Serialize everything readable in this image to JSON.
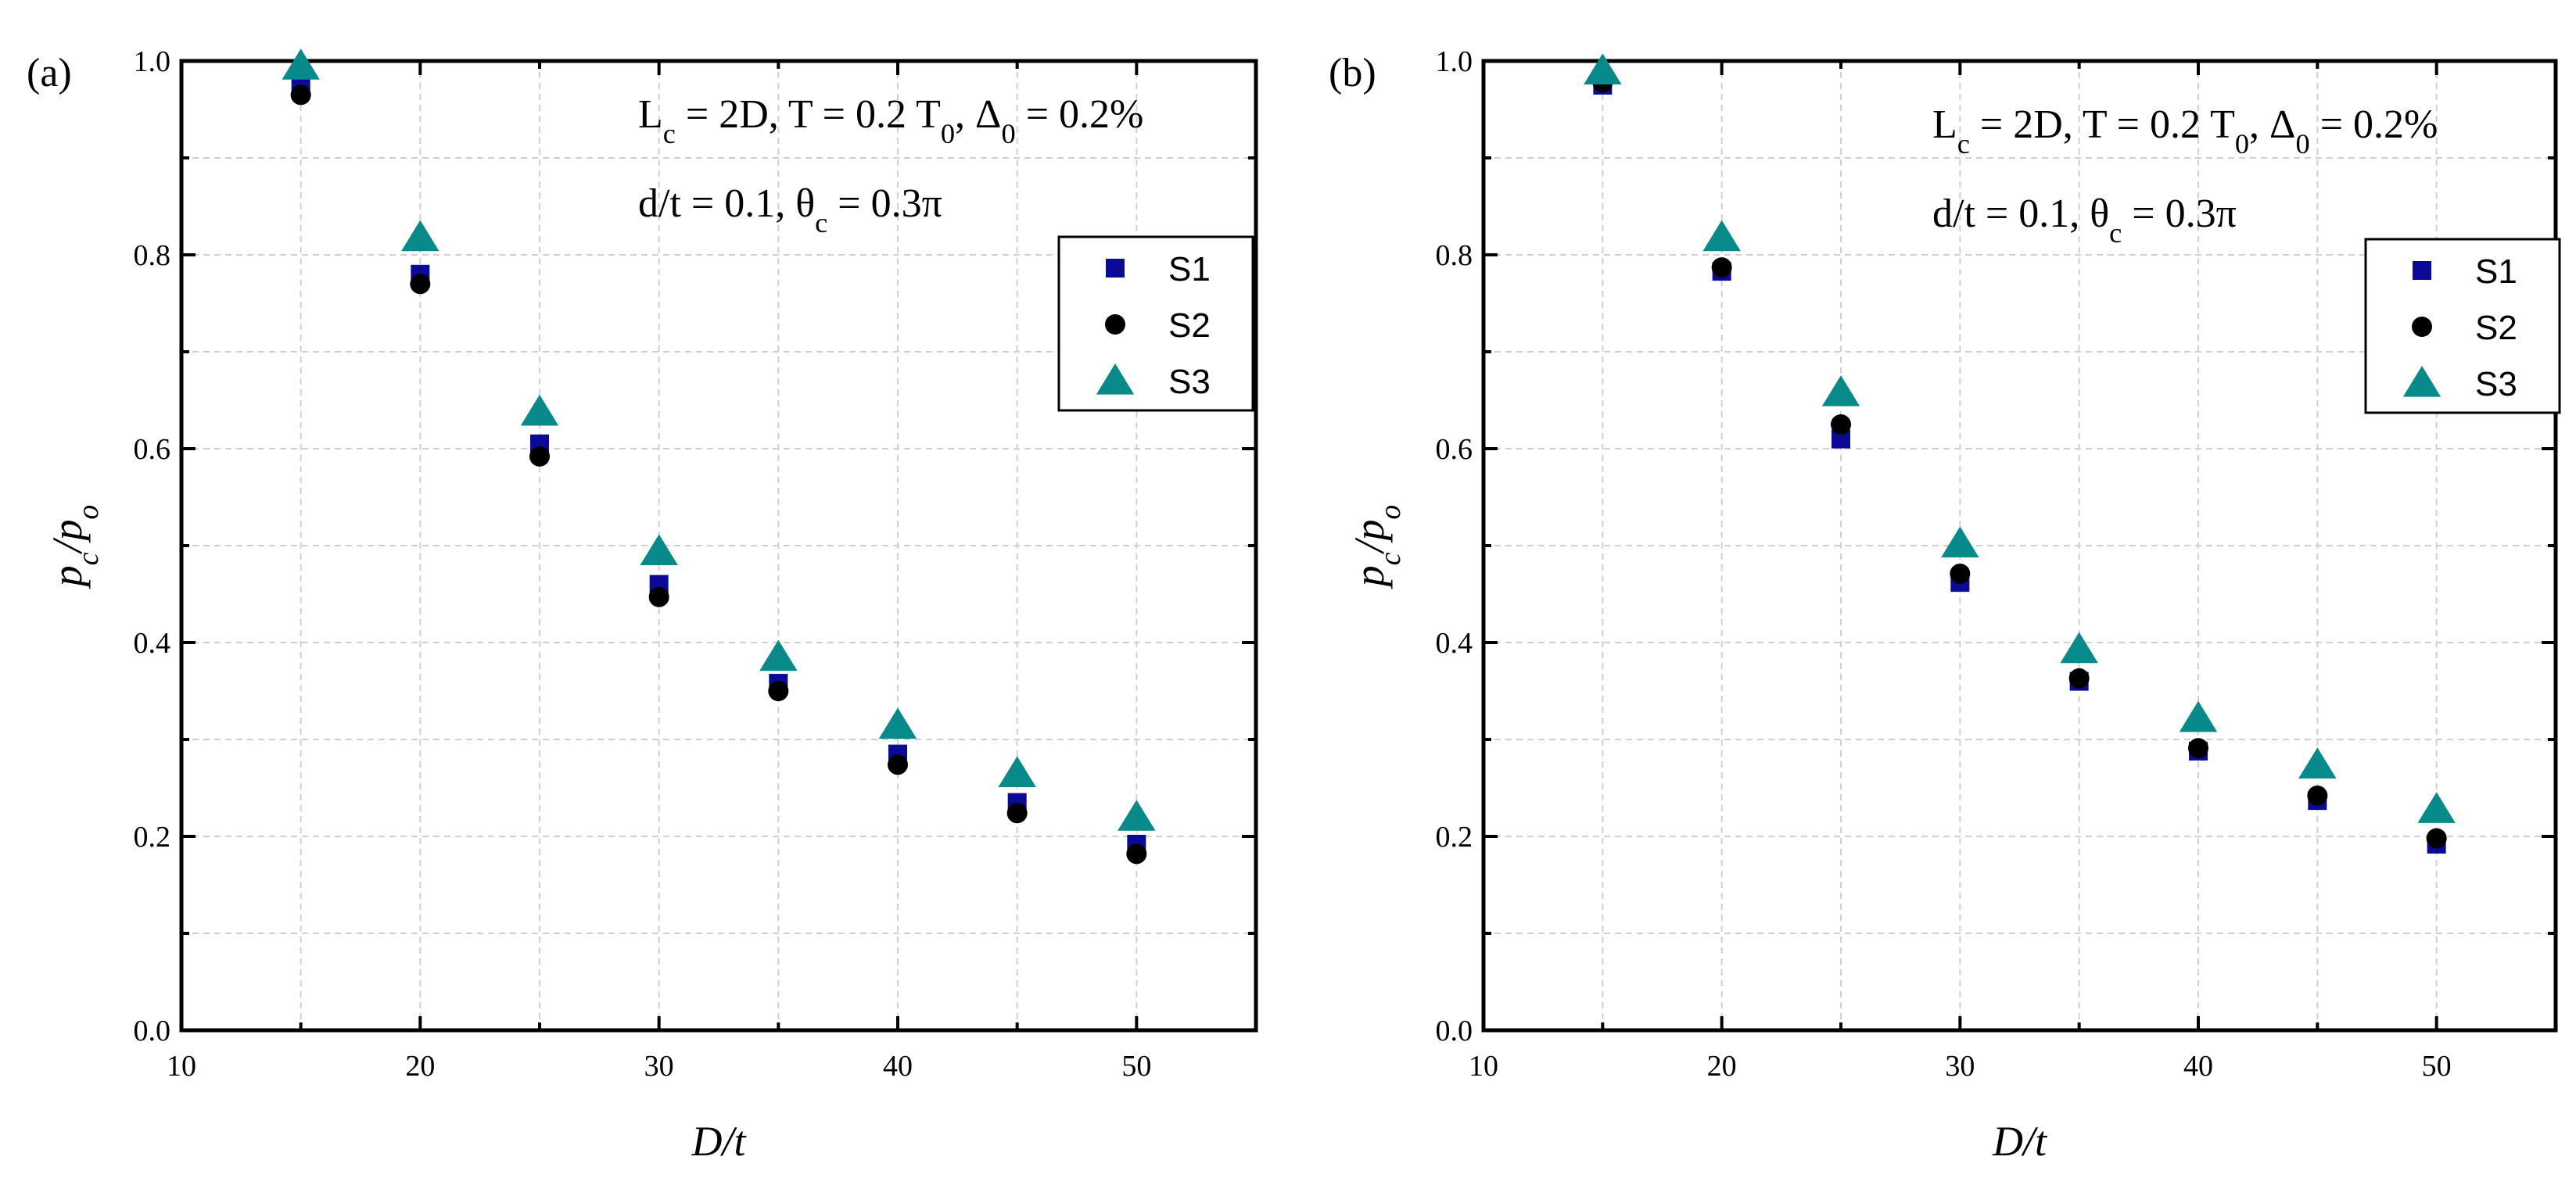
{
  "chart_data": [
    {
      "type": "scatter",
      "panel_label": "(a)",
      "title": "",
      "xlabel": "D/t",
      "ylabel": "p_c/p_o",
      "xlim": [
        10,
        55
      ],
      "ylim": [
        0.0,
        1.0
      ],
      "xticks": [
        10,
        20,
        30,
        40,
        50
      ],
      "xtick_labels": [
        "10",
        "20",
        "30",
        "40",
        "50"
      ],
      "yticks": [
        0.0,
        0.2,
        0.4,
        0.6,
        0.8,
        1.0
      ],
      "ytick_labels": [
        "0.0",
        "0.2",
        "0.4",
        "0.6",
        "0.8",
        "1.0"
      ],
      "grid": true,
      "annotations": [
        "L_c = 2D,  T = 0.2 T_0,  Δ_0 = 0.2%",
        "d/t = 0.1,  θ_c = 0.3π"
      ],
      "legend_position": "upper-right",
      "x": [
        15,
        20,
        25,
        30,
        35,
        40,
        45,
        50
      ],
      "series": [
        {
          "name": "S1",
          "marker": "square",
          "color": "#0a0a96",
          "values": [
            0.975,
            0.78,
            0.605,
            0.46,
            0.358,
            0.285,
            0.235,
            0.192
          ]
        },
        {
          "name": "S2",
          "marker": "circle",
          "color": "#000000",
          "values": [
            0.965,
            0.77,
            0.592,
            0.447,
            0.35,
            0.274,
            0.224,
            0.182
          ]
        },
        {
          "name": "S3",
          "marker": "triangle",
          "color": "#088a8a",
          "values": [
            0.995,
            0.818,
            0.638,
            0.494,
            0.385,
            0.315,
            0.265,
            0.22
          ]
        }
      ]
    },
    {
      "type": "scatter",
      "panel_label": "(b)",
      "title": "",
      "xlabel": "D/t",
      "ylabel": "p_c/p_o",
      "xlim": [
        10,
        55
      ],
      "ylim": [
        0.0,
        1.0
      ],
      "xticks": [
        10,
        20,
        30,
        40,
        50
      ],
      "xtick_labels": [
        "10",
        "20",
        "30",
        "40",
        "50"
      ],
      "yticks": [
        0.0,
        0.2,
        0.4,
        0.6,
        0.8,
        1.0
      ],
      "ytick_labels": [
        "0.0",
        "0.2",
        "0.4",
        "0.6",
        "0.8",
        "1.0"
      ],
      "grid": true,
      "annotations": [
        "L_c = 2D,  T = 0.2 T_0,  Δ_0 = 0.2%",
        "d/t = 0.1,  θ_c = 0.3π"
      ],
      "legend_position": "upper-right",
      "x": [
        15,
        20,
        25,
        30,
        35,
        40,
        45,
        50
      ],
      "series": [
        {
          "name": "S1",
          "marker": "square",
          "color": "#0a0a96",
          "values": [
            0.975,
            0.783,
            0.61,
            0.462,
            0.36,
            0.288,
            0.237,
            0.192
          ]
        },
        {
          "name": "S2",
          "marker": "circle",
          "color": "#000000",
          "values": [
            0.978,
            0.787,
            0.625,
            0.471,
            0.363,
            0.291,
            0.242,
            0.198
          ]
        },
        {
          "name": "S3",
          "marker": "triangle",
          "color": "#088a8a",
          "values": [
            0.99,
            0.818,
            0.658,
            0.502,
            0.393,
            0.322,
            0.274,
            0.228
          ]
        }
      ]
    }
  ]
}
